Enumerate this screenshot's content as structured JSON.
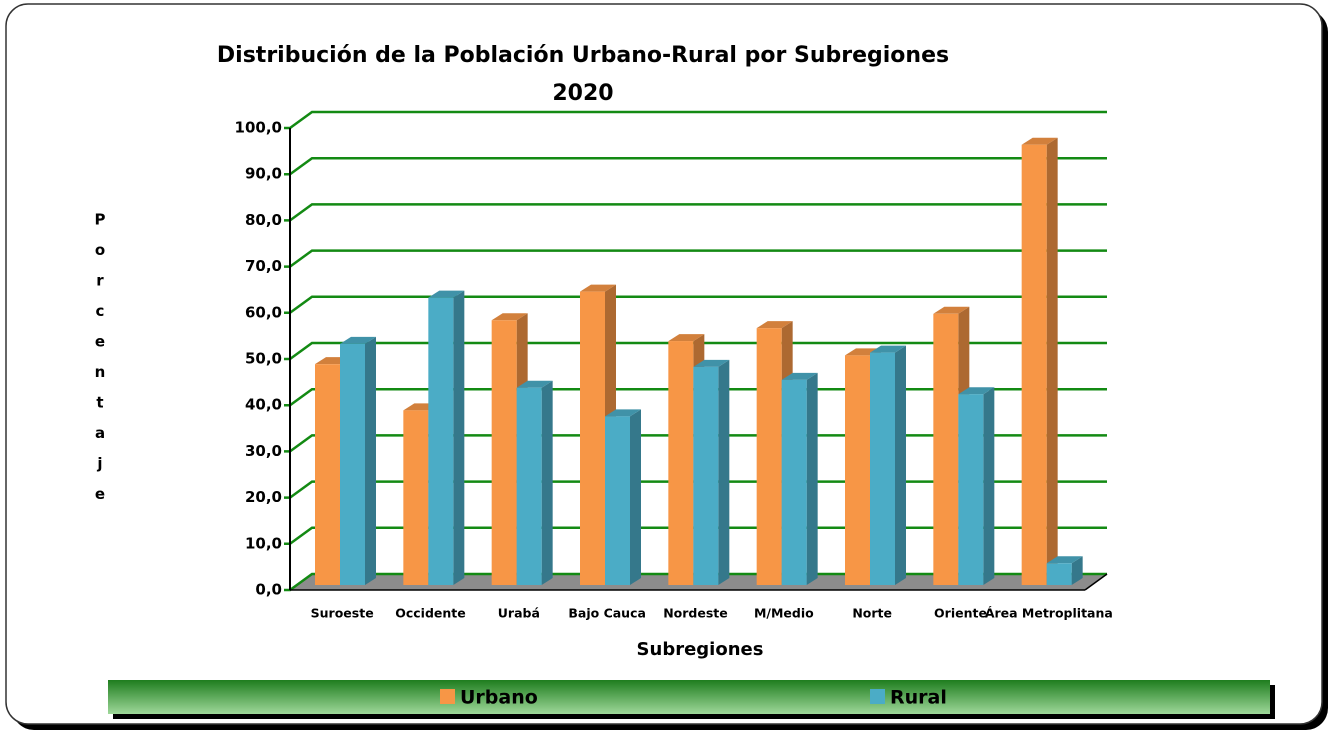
{
  "chart_data": {
    "type": "bar3d",
    "title": "Distribución de la Población Urbano-Rural por Subregiones",
    "subtitle": "2020",
    "y_label": "Porcentaje",
    "x_label": "Subregiones",
    "categories": [
      "Suroeste",
      "Occidente",
      "Urabá",
      "Bajo Cauca",
      "Nordeste",
      "M/Medio",
      "Norte",
      "Oriente",
      "Área Metroplitana"
    ],
    "series": [
      {
        "name": "Urbano",
        "color": "#f79646",
        "values": [
          47.8,
          37.8,
          57.3,
          63.5,
          52.8,
          55.6,
          49.7,
          58.7,
          95.3
        ]
      },
      {
        "name": "Rural",
        "color": "#4bacc6",
        "values": [
          52.2,
          62.2,
          42.7,
          36.5,
          47.2,
          44.4,
          50.3,
          41.3,
          4.7
        ]
      }
    ],
    "ylim": [
      0,
      100
    ],
    "yticks": [
      {
        "value": 0,
        "label": "0,0"
      },
      {
        "value": 10,
        "label": "10,0"
      },
      {
        "value": 20,
        "label": "20,0"
      },
      {
        "value": 30,
        "label": "30,0"
      },
      {
        "value": 40,
        "label": "40,0"
      },
      {
        "value": 50,
        "label": "50,0"
      },
      {
        "value": 60,
        "label": "60,0"
      },
      {
        "value": 70,
        "label": "70,0"
      },
      {
        "value": 80,
        "label": "80,0"
      },
      {
        "value": 90,
        "label": "90,0"
      },
      {
        "value": 100,
        "label": "100,0"
      }
    ],
    "grid": true,
    "grid_color": "#138a13",
    "legend": "bottom"
  }
}
